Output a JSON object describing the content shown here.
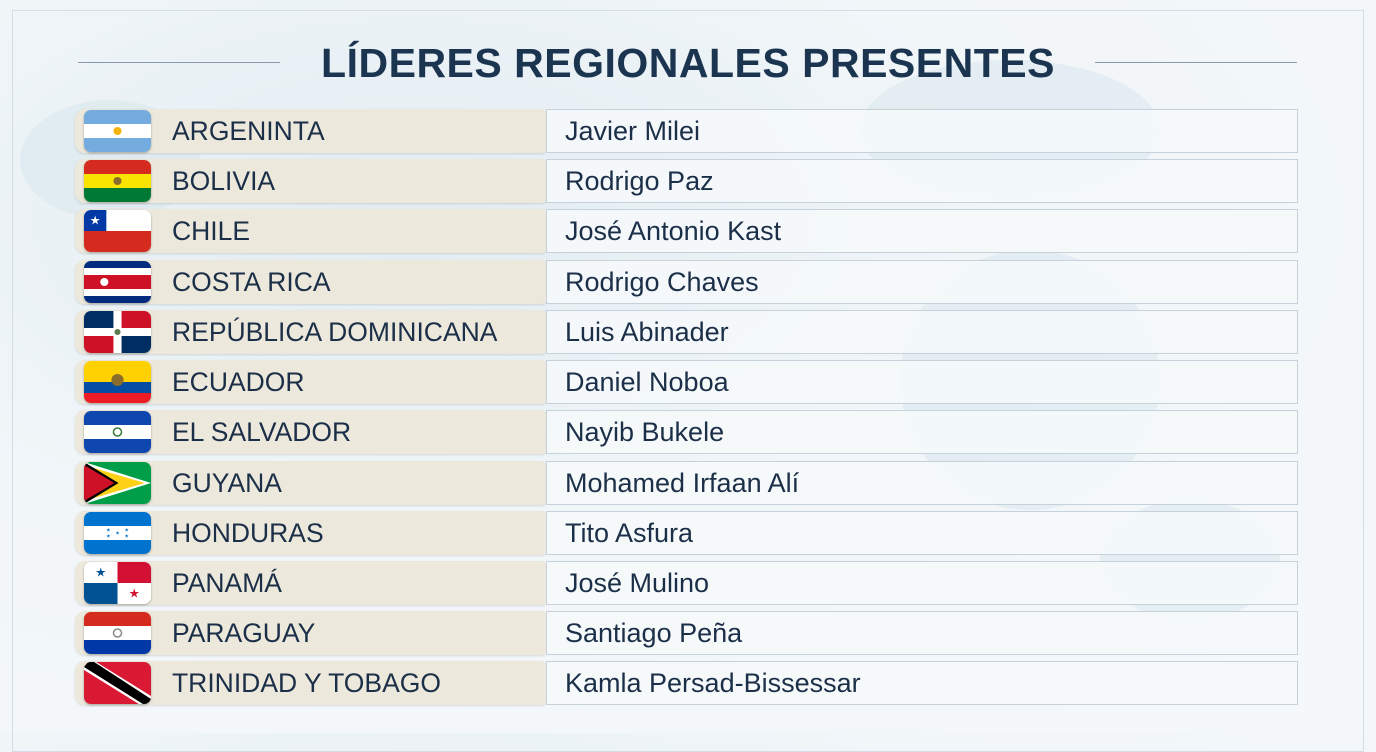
{
  "header": {
    "title": "LÍDERES REGIONALES PRESENTES"
  },
  "table": {
    "rows": [
      [
        "ARGENINTA",
        "Javier Milei"
      ],
      [
        "BOLIVIA",
        "Rodrigo Paz"
      ],
      [
        "CHILE",
        "José Antonio Kast"
      ],
      [
        "COSTA RICA",
        "Rodrigo Chaves"
      ],
      [
        "REPÚBLICA DOMINICANA",
        "Luis Abinader"
      ],
      [
        "ECUADOR",
        "Daniel Noboa"
      ],
      [
        "EL SALVADOR",
        "Nayib Bukele"
      ],
      [
        "GUYANA",
        "Mohamed Irfaan Alí"
      ],
      [
        "HONDURAS",
        "Tito Asfura"
      ],
      [
        "PANAMÁ",
        "José Mulino"
      ],
      [
        "PARAGUAY",
        "Santiago Peña"
      ],
      [
        "TRINIDAD Y TOBAGO",
        "Kamla Persad-Bissessar"
      ]
    ]
  }
}
